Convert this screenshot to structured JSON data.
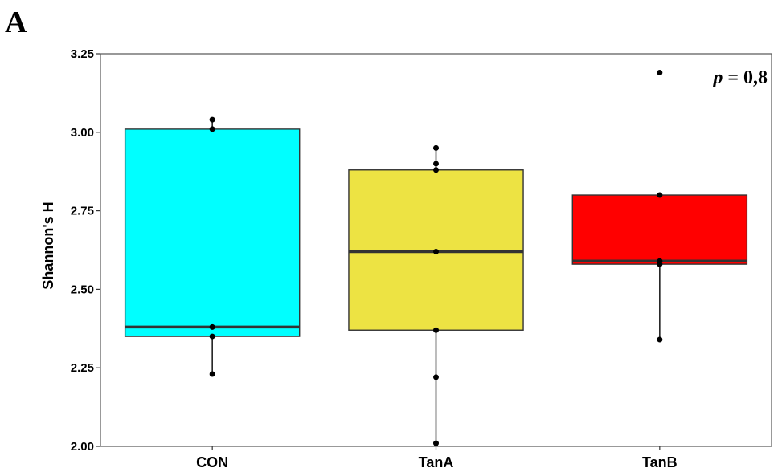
{
  "panel_label": "A",
  "chart_data": {
    "type": "box",
    "ylabel": "Shannon's H",
    "xlabel": "",
    "ylim": [
      2.0,
      3.25
    ],
    "yticks": [
      2.0,
      2.25,
      2.5,
      2.75,
      3.0,
      3.25
    ],
    "ytick_labels": [
      "2.00",
      "2.25",
      "2.50",
      "2.75",
      "3.00",
      "3.25"
    ],
    "categories": [
      "CON",
      "TanA",
      "TanB"
    ],
    "annotation": {
      "prefix": "p",
      "text": " = 0,8"
    },
    "groups": [
      {
        "name": "CON",
        "color": "#00FFFF",
        "q1": 2.35,
        "median": 2.38,
        "q3": 3.01,
        "whisker_low": 2.23,
        "whisker_high": 3.04,
        "points": [
          2.23,
          2.35,
          2.38,
          3.01,
          3.04
        ]
      },
      {
        "name": "TanA",
        "color": "#EDE343",
        "q1": 2.37,
        "median": 2.62,
        "q3": 2.88,
        "whisker_low": 2.01,
        "whisker_high": 2.95,
        "points": [
          2.01,
          2.22,
          2.37,
          2.62,
          2.88,
          2.9,
          2.95
        ]
      },
      {
        "name": "TanB",
        "color": "#FF0000",
        "q1": 2.58,
        "median": 2.59,
        "q3": 2.8,
        "whisker_low": 2.34,
        "whisker_high": 2.8,
        "points": [
          2.34,
          2.58,
          2.59,
          2.8,
          3.19
        ]
      }
    ]
  }
}
